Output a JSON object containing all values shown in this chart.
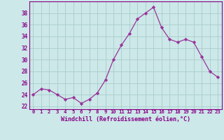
{
  "x": [
    0,
    1,
    2,
    3,
    4,
    5,
    6,
    7,
    8,
    9,
    10,
    11,
    12,
    13,
    14,
    15,
    16,
    17,
    18,
    19,
    20,
    21,
    22,
    23
  ],
  "y": [
    24.0,
    25.0,
    24.8,
    24.0,
    23.2,
    23.5,
    22.5,
    23.2,
    24.3,
    26.5,
    30.0,
    32.5,
    34.5,
    37.0,
    38.0,
    39.0,
    35.5,
    33.5,
    33.0,
    33.5,
    33.0,
    30.5,
    28.0,
    27.0
  ],
  "line_color": "#993399",
  "marker_color": "#993399",
  "bg_color": "#cce8e8",
  "grid_color": "#aacccc",
  "xlabel": "Windchill (Refroidissement éolien,°C)",
  "ylim": [
    21.5,
    40
  ],
  "xlim": [
    -0.5,
    23.5
  ],
  "yticks": [
    22,
    24,
    26,
    28,
    30,
    32,
    34,
    36,
    38
  ],
  "xticks": [
    0,
    1,
    2,
    3,
    4,
    5,
    6,
    7,
    8,
    9,
    10,
    11,
    12,
    13,
    14,
    15,
    16,
    17,
    18,
    19,
    20,
    21,
    22,
    23
  ],
  "tick_color": "#880088",
  "spine_color": "#880088"
}
